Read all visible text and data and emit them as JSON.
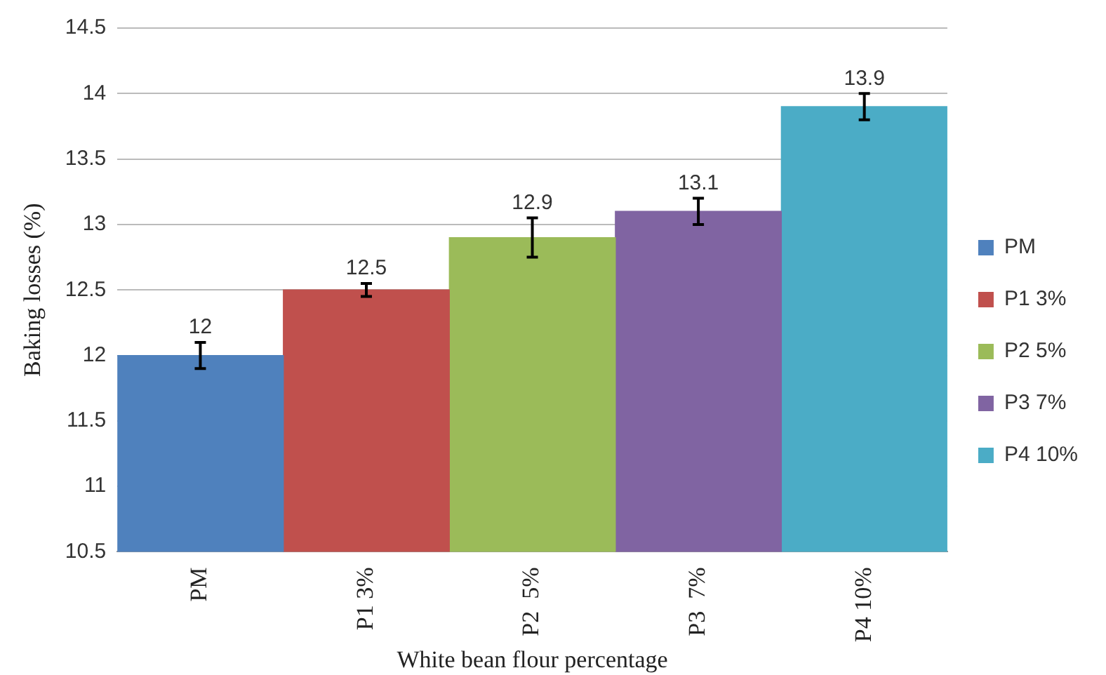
{
  "chart_data": {
    "type": "bar",
    "xlabel": "White bean flour percentage",
    "ylabel": "Baking losses (%)",
    "categories": [
      "PM",
      "P1 3%",
      "P2  5%",
      "P3  7%",
      "P4 10%"
    ],
    "series": [
      {
        "name": "PM",
        "color": "#4f81bd",
        "values": [
          12,
          null,
          null,
          null,
          null
        ],
        "errors": [
          0.1,
          null,
          null,
          null,
          null
        ]
      },
      {
        "name": "P1 3%",
        "color": "#c0504d",
        "values": [
          null,
          12.5,
          null,
          null,
          null
        ],
        "errors": [
          null,
          0.05,
          null,
          null,
          null
        ]
      },
      {
        "name": "P2 5%",
        "color": "#9bbb59",
        "values": [
          null,
          null,
          12.9,
          null,
          null
        ],
        "errors": [
          null,
          null,
          0.15,
          null,
          null
        ]
      },
      {
        "name": "P3 7%",
        "color": "#8064a2",
        "values": [
          null,
          null,
          null,
          13.1,
          null
        ],
        "errors": [
          null,
          null,
          null,
          0.1,
          null
        ]
      },
      {
        "name": "P4 10%",
        "color": "#4bacc6",
        "values": [
          null,
          null,
          null,
          null,
          13.9
        ],
        "errors": [
          null,
          null,
          null,
          null,
          0.1
        ]
      }
    ],
    "ylim": [
      10.5,
      14.5
    ],
    "yticks": [
      10.5,
      11,
      11.5,
      12,
      12.5,
      13,
      13.5,
      14,
      14.5
    ],
    "grid": "y",
    "legend": "right",
    "data_labels": true
  }
}
